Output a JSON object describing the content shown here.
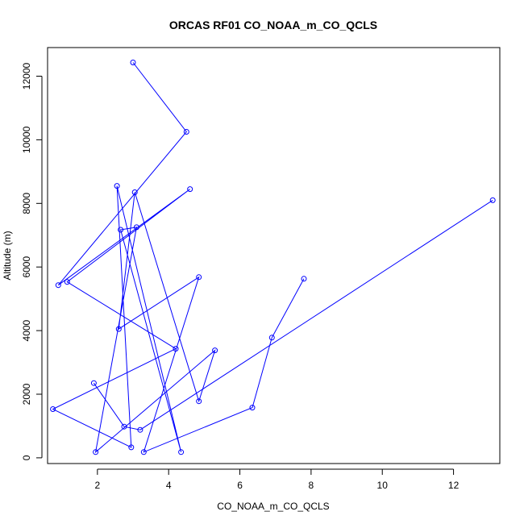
{
  "chart_data": {
    "type": "line",
    "title": "ORCAS RF01 CO_NOAA_m_CO_QCLS",
    "xlabel": "CO_NOAA_m_CO_QCLS",
    "ylabel": "Altitude (m)",
    "xlim": [
      0.6,
      13.3
    ],
    "ylim": [
      -180,
      12900
    ],
    "x_ticks": [
      2,
      4,
      6,
      8,
      10,
      12
    ],
    "y_ticks": [
      0,
      2000,
      4000,
      6000,
      8000,
      10000,
      12000
    ],
    "grid": false,
    "color": "#0000ff",
    "series": [
      {
        "markers": "open-circle",
        "x": [
          3.0,
          4.5,
          0.9,
          4.6,
          1.15,
          4.2,
          0.75,
          2.95,
          2.55,
          4.35,
          2.65,
          3.1,
          1.95,
          5.3,
          4.85,
          3.05,
          2.6,
          4.85,
          3.3,
          6.35,
          6.9,
          7.8
        ],
        "y": [
          12430,
          10250,
          5430,
          8450,
          5530,
          3430,
          1530,
          330,
          8550,
          180,
          7170,
          7250,
          180,
          3380,
          1780,
          8350,
          4050,
          5680,
          180,
          1580,
          3780,
          5630
        ]
      },
      {
        "markers": "open-circle",
        "x": [
          1.9,
          2.75,
          3.2,
          13.1
        ],
        "y": [
          2350,
          980,
          880,
          8100
        ]
      }
    ]
  }
}
